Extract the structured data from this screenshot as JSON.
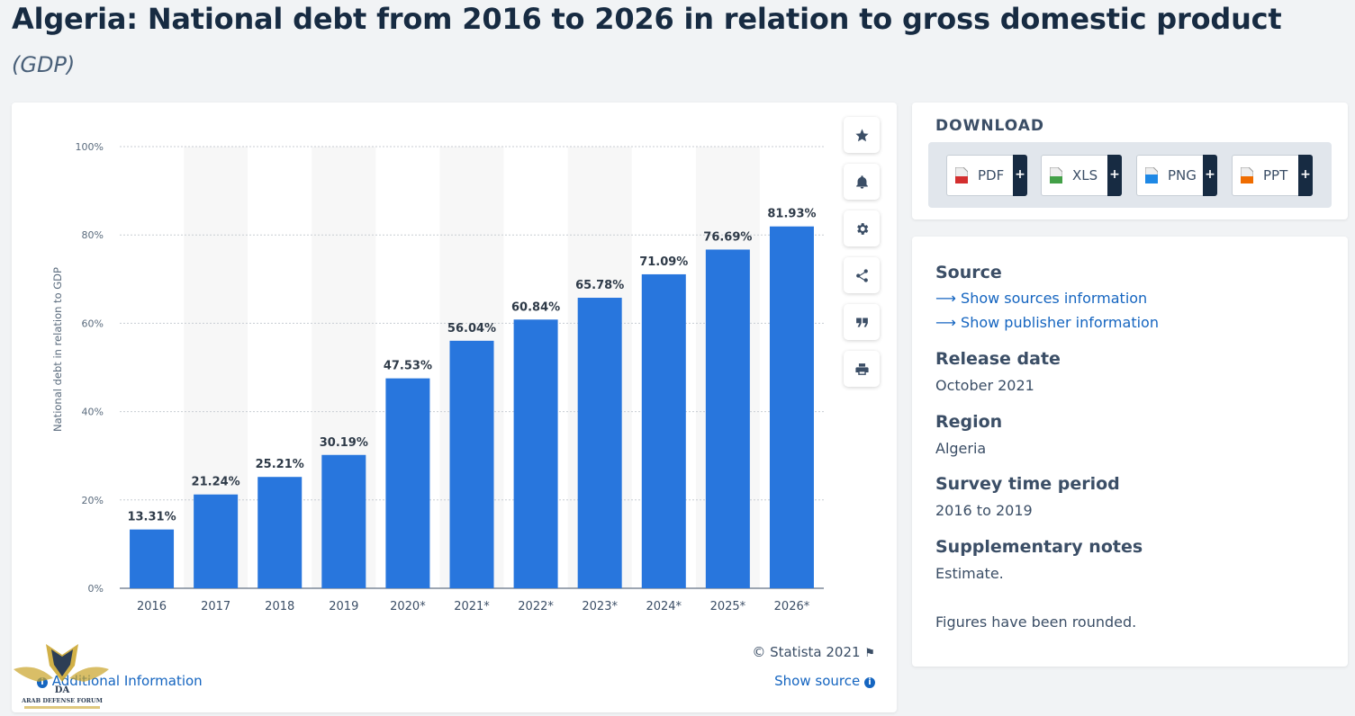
{
  "header": {
    "title": "Algeria: National debt from 2016 to 2026 in relation to gross domestic product",
    "subtitle": "(GDP)"
  },
  "chart_data": {
    "type": "bar",
    "categories": [
      "2016",
      "2017",
      "2018",
      "2019",
      "2020*",
      "2021*",
      "2022*",
      "2023*",
      "2024*",
      "2025*",
      "2026*"
    ],
    "values": [
      13.31,
      21.24,
      25.21,
      30.19,
      47.53,
      56.04,
      60.84,
      65.78,
      71.09,
      76.69,
      81.93
    ],
    "value_labels": [
      "13.31%",
      "21.24%",
      "25.21%",
      "30.19%",
      "47.53%",
      "56.04%",
      "60.84%",
      "65.78%",
      "71.09%",
      "76.69%",
      "81.93%"
    ],
    "ylabel": "National debt in relation to GDP",
    "xlabel": "",
    "ylim": [
      0,
      100
    ],
    "yticks": [
      0,
      20,
      40,
      60,
      80,
      100
    ],
    "ytick_labels": [
      "0%",
      "20%",
      "40%",
      "60%",
      "80%",
      "100%"
    ],
    "grid": true,
    "bar_color": "#2876dd"
  },
  "chart_footer": {
    "credit": "© Statista 2021",
    "show_source": "Show source",
    "additional_info": "Additional Information"
  },
  "toolbar": {
    "icons": [
      "star-icon",
      "bell-icon",
      "gear-icon",
      "share-icon",
      "quote-icon",
      "print-icon"
    ]
  },
  "download": {
    "title": "DOWNLOAD",
    "buttons": [
      {
        "label": "PDF",
        "color": "#d32f2f"
      },
      {
        "label": "XLS",
        "color": "#43a047"
      },
      {
        "label": "PNG",
        "color": "#1e88e5"
      },
      {
        "label": "PPT",
        "color": "#ef6c00"
      }
    ]
  },
  "info": {
    "source_heading": "Source",
    "source_link": "Show sources information",
    "publisher_link": "Show publisher information",
    "release_heading": "Release date",
    "release_value": "October 2021",
    "region_heading": "Region",
    "region_value": "Algeria",
    "survey_heading": "Survey time period",
    "survey_value": "2016 to 2019",
    "notes_heading": "Supplementary notes",
    "notes_value": "Estimate.",
    "rounded_note": "Figures have been rounded."
  }
}
